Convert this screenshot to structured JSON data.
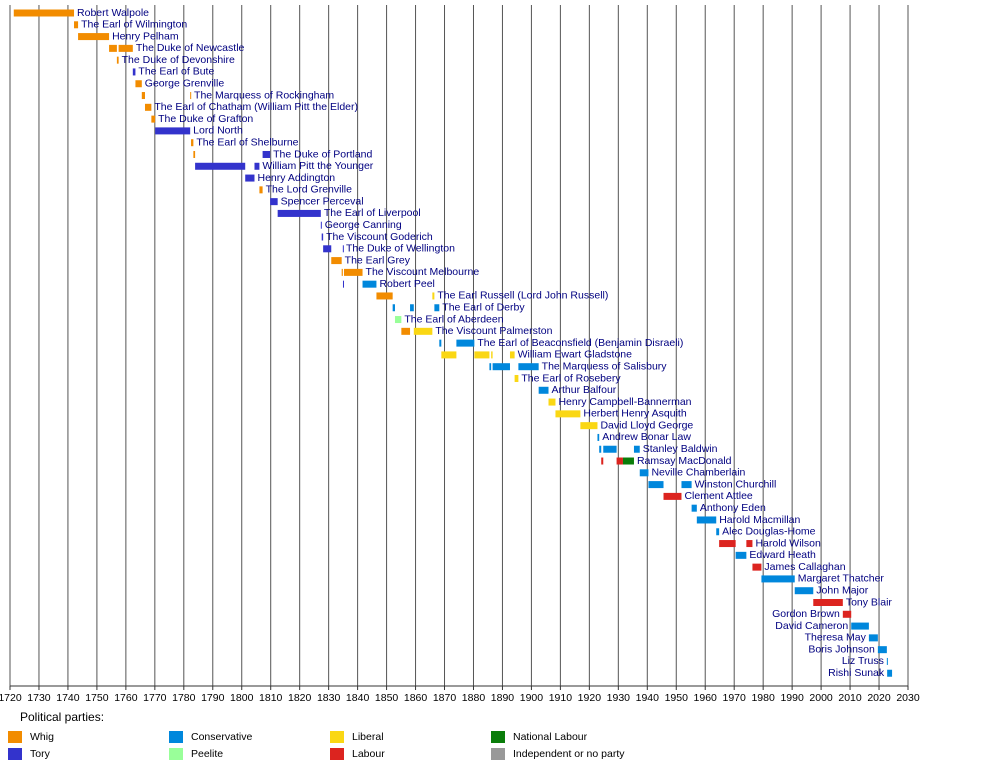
{
  "chart_data": {
    "type": "timeline",
    "xlim": [
      1720,
      2030
    ],
    "xticks": [
      1720,
      1730,
      1740,
      1750,
      1760,
      1770,
      1780,
      1790,
      1800,
      1810,
      1820,
      1830,
      1840,
      1850,
      1860,
      1870,
      1880,
      1890,
      1900,
      1910,
      1920,
      1930,
      1940,
      1950,
      1960,
      1970,
      1980,
      1990,
      2000,
      2010,
      2020,
      2030
    ],
    "grid": true,
    "legend_title": "Political parties:",
    "legend": [
      {
        "name": "Whig",
        "color": "#f28c00"
      },
      {
        "name": "Tory",
        "color": "#3333cc"
      },
      {
        "name": "Conservative",
        "color": "#0087dc"
      },
      {
        "name": "Peelite",
        "color": "#99ff99"
      },
      {
        "name": "Liberal",
        "color": "#fad714"
      },
      {
        "name": "Labour",
        "color": "#dc241f"
      },
      {
        "name": "National Labour",
        "color": "#0a7d0a"
      },
      {
        "name": "Independent or no party",
        "color": "#999999"
      }
    ],
    "rows": [
      {
        "name": "Robert Walpole",
        "terms": [
          {
            "start": 1721.3,
            "end": 1742.1,
            "party": "Whig"
          }
        ]
      },
      {
        "name": "The Earl of Wilmington",
        "terms": [
          {
            "start": 1742.1,
            "end": 1743.5,
            "party": "Whig"
          }
        ]
      },
      {
        "name": "Henry Pelham",
        "terms": [
          {
            "start": 1743.5,
            "end": 1754.2,
            "party": "Whig"
          }
        ]
      },
      {
        "name": "The Duke of Newcastle",
        "terms": [
          {
            "start": 1754.2,
            "end": 1756.9,
            "party": "Whig"
          },
          {
            "start": 1757.5,
            "end": 1762.4,
            "party": "Whig"
          }
        ]
      },
      {
        "name": "The Duke of Devonshire",
        "terms": [
          {
            "start": 1756.9,
            "end": 1757.5,
            "party": "Whig"
          }
        ]
      },
      {
        "name": "The Earl of Bute",
        "terms": [
          {
            "start": 1762.4,
            "end": 1763.3,
            "party": "Tory"
          }
        ]
      },
      {
        "name": "George Grenville",
        "terms": [
          {
            "start": 1763.3,
            "end": 1765.5,
            "party": "Whig"
          }
        ]
      },
      {
        "name": "The Marquess of Rockingham",
        "terms": [
          {
            "start": 1765.5,
            "end": 1766.6,
            "party": "Whig"
          },
          {
            "start": 1782.2,
            "end": 1782.5,
            "party": "Whig"
          }
        ]
      },
      {
        "name": "The Earl of Chatham (William Pitt the Elder)",
        "terms": [
          {
            "start": 1766.6,
            "end": 1768.8,
            "party": "Whig"
          }
        ]
      },
      {
        "name": "The Duke of Grafton",
        "terms": [
          {
            "start": 1768.8,
            "end": 1770.1,
            "party": "Whig"
          }
        ]
      },
      {
        "name": "Lord North",
        "terms": [
          {
            "start": 1770.1,
            "end": 1782.2,
            "party": "Tory"
          }
        ]
      },
      {
        "name": "The Earl of Shelburne",
        "terms": [
          {
            "start": 1782.5,
            "end": 1783.3,
            "party": "Whig"
          }
        ]
      },
      {
        "name": "The Duke of Portland",
        "terms": [
          {
            "start": 1783.3,
            "end": 1783.9,
            "party": "Whig"
          },
          {
            "start": 1807.2,
            "end": 1809.8,
            "party": "Tory"
          }
        ]
      },
      {
        "name": "William Pitt the Younger",
        "terms": [
          {
            "start": 1783.9,
            "end": 1801.2,
            "party": "Tory"
          },
          {
            "start": 1804.4,
            "end": 1806.1,
            "party": "Tory"
          }
        ]
      },
      {
        "name": "Henry Addington",
        "terms": [
          {
            "start": 1801.2,
            "end": 1804.4,
            "party": "Tory"
          }
        ]
      },
      {
        "name": "The Lord Grenville",
        "terms": [
          {
            "start": 1806.1,
            "end": 1807.2,
            "party": "Whig"
          }
        ]
      },
      {
        "name": "Spencer Perceval",
        "terms": [
          {
            "start": 1809.8,
            "end": 1812.4,
            "party": "Tory"
          }
        ]
      },
      {
        "name": "The Earl of Liverpool",
        "terms": [
          {
            "start": 1812.4,
            "end": 1827.3,
            "party": "Tory"
          }
        ]
      },
      {
        "name": "George Canning",
        "terms": [
          {
            "start": 1827.3,
            "end": 1827.6,
            "party": "Tory"
          }
        ]
      },
      {
        "name": "The Viscount Goderich",
        "terms": [
          {
            "start": 1827.6,
            "end": 1828.1,
            "party": "Tory"
          }
        ]
      },
      {
        "name": "The Duke of Wellington",
        "terms": [
          {
            "start": 1828.1,
            "end": 1830.9,
            "party": "Tory"
          },
          {
            "start": 1834.9,
            "end": 1834.95,
            "party": "Tory"
          }
        ]
      },
      {
        "name": "The Earl Grey",
        "terms": [
          {
            "start": 1830.9,
            "end": 1834.5,
            "party": "Whig"
          }
        ]
      },
      {
        "name": "The Viscount Melbourne",
        "terms": [
          {
            "start": 1834.5,
            "end": 1834.9,
            "party": "Whig"
          },
          {
            "start": 1835.3,
            "end": 1841.7,
            "party": "Whig"
          }
        ]
      },
      {
        "name": "Robert Peel",
        "terms": [
          {
            "start": 1834.95,
            "end": 1835.3,
            "party": "Tory"
          },
          {
            "start": 1841.7,
            "end": 1846.5,
            "party": "Conservative"
          }
        ]
      },
      {
        "name": "The Earl Russell (Lord John Russell)",
        "terms": [
          {
            "start": 1846.5,
            "end": 1852.1,
            "party": "Whig"
          },
          {
            "start": 1865.8,
            "end": 1866.5,
            "party": "Liberal"
          }
        ]
      },
      {
        "name": "The Earl of Derby",
        "terms": [
          {
            "start": 1852.1,
            "end": 1852.9,
            "party": "Conservative"
          },
          {
            "start": 1858.1,
            "end": 1859.4,
            "party": "Conservative"
          },
          {
            "start": 1866.5,
            "end": 1868.2,
            "party": "Conservative"
          }
        ]
      },
      {
        "name": "The Earl of Aberdeen",
        "terms": [
          {
            "start": 1852.9,
            "end": 1855.1,
            "party": "Peelite"
          }
        ]
      },
      {
        "name": "The Viscount Palmerston",
        "terms": [
          {
            "start": 1855.1,
            "end": 1858.1,
            "party": "Whig"
          },
          {
            "start": 1859.4,
            "end": 1865.8,
            "party": "Liberal"
          }
        ]
      },
      {
        "name": "The Earl of Beaconsfield (Benjamin Disraeli)",
        "terms": [
          {
            "start": 1868.2,
            "end": 1868.9,
            "party": "Conservative"
          },
          {
            "start": 1874.1,
            "end": 1880.3,
            "party": "Conservative"
          }
        ]
      },
      {
        "name": "William Ewart Gladstone",
        "terms": [
          {
            "start": 1868.9,
            "end": 1874.1,
            "party": "Liberal"
          },
          {
            "start": 1880.3,
            "end": 1885.5,
            "party": "Liberal"
          },
          {
            "start": 1886.1,
            "end": 1886.6,
            "party": "Liberal"
          },
          {
            "start": 1892.6,
            "end": 1894.2,
            "party": "Liberal"
          }
        ]
      },
      {
        "name": "The Marquess of Salisbury",
        "terms": [
          {
            "start": 1885.5,
            "end": 1886.1,
            "party": "Conservative"
          },
          {
            "start": 1886.6,
            "end": 1892.6,
            "party": "Conservative"
          },
          {
            "start": 1895.5,
            "end": 1902.5,
            "party": "Conservative"
          }
        ]
      },
      {
        "name": "The Earl of Rosebery",
        "terms": [
          {
            "start": 1894.2,
            "end": 1895.5,
            "party": "Liberal"
          }
        ]
      },
      {
        "name": "Arthur Balfour",
        "terms": [
          {
            "start": 1902.5,
            "end": 1905.9,
            "party": "Conservative"
          }
        ]
      },
      {
        "name": "Henry Campbell-Bannerman",
        "terms": [
          {
            "start": 1905.9,
            "end": 1908.3,
            "party": "Liberal"
          }
        ]
      },
      {
        "name": "Herbert Henry Asquith",
        "terms": [
          {
            "start": 1908.3,
            "end": 1916.9,
            "party": "Liberal"
          }
        ]
      },
      {
        "name": "David Lloyd George",
        "terms": [
          {
            "start": 1916.9,
            "end": 1922.8,
            "party": "Liberal"
          }
        ]
      },
      {
        "name": "Andrew Bonar Law",
        "terms": [
          {
            "start": 1922.8,
            "end": 1923.4,
            "party": "Conservative"
          }
        ]
      },
      {
        "name": "Stanley Baldwin",
        "terms": [
          {
            "start": 1923.4,
            "end": 1924.1,
            "party": "Conservative"
          },
          {
            "start": 1924.8,
            "end": 1929.4,
            "party": "Conservative"
          },
          {
            "start": 1935.4,
            "end": 1937.4,
            "party": "Conservative"
          }
        ]
      },
      {
        "name": "Ramsay MacDonald",
        "terms": [
          {
            "start": 1924.1,
            "end": 1924.8,
            "party": "Labour"
          },
          {
            "start": 1929.4,
            "end": 1931.6,
            "party": "Labour"
          },
          {
            "start": 1931.6,
            "end": 1935.4,
            "party": "National Labour"
          }
        ]
      },
      {
        "name": "Neville Chamberlain",
        "terms": [
          {
            "start": 1937.4,
            "end": 1940.4,
            "party": "Conservative"
          }
        ]
      },
      {
        "name": "Winston Churchill",
        "terms": [
          {
            "start": 1940.4,
            "end": 1945.6,
            "party": "Conservative"
          },
          {
            "start": 1951.8,
            "end": 1955.3,
            "party": "Conservative"
          }
        ]
      },
      {
        "name": "Clement Attlee",
        "terms": [
          {
            "start": 1945.6,
            "end": 1951.8,
            "party": "Labour"
          }
        ]
      },
      {
        "name": "Anthony Eden",
        "terms": [
          {
            "start": 1955.3,
            "end": 1957.1,
            "party": "Conservative"
          }
        ]
      },
      {
        "name": "Harold Macmillan",
        "terms": [
          {
            "start": 1957.1,
            "end": 1963.8,
            "party": "Conservative"
          }
        ]
      },
      {
        "name": "Alec Douglas-Home",
        "terms": [
          {
            "start": 1963.8,
            "end": 1964.8,
            "party": "Conservative"
          }
        ]
      },
      {
        "name": "Harold Wilson",
        "terms": [
          {
            "start": 1964.8,
            "end": 1970.5,
            "party": "Labour"
          },
          {
            "start": 1974.2,
            "end": 1976.3,
            "party": "Labour"
          }
        ]
      },
      {
        "name": "Edward Heath",
        "terms": [
          {
            "start": 1970.5,
            "end": 1974.2,
            "party": "Conservative"
          }
        ]
      },
      {
        "name": "James Callaghan",
        "terms": [
          {
            "start": 1976.3,
            "end": 1979.4,
            "party": "Labour"
          }
        ]
      },
      {
        "name": "Margaret Thatcher",
        "terms": [
          {
            "start": 1979.4,
            "end": 1990.9,
            "party": "Conservative"
          }
        ]
      },
      {
        "name": "John Major",
        "terms": [
          {
            "start": 1990.9,
            "end": 1997.3,
            "party": "Conservative"
          }
        ]
      },
      {
        "name": "Tony Blair",
        "terms": [
          {
            "start": 1997.3,
            "end": 2007.5,
            "party": "Labour"
          }
        ]
      },
      {
        "name": "Gordon Brown",
        "terms": [
          {
            "start": 2007.5,
            "end": 2010.4,
            "party": "Labour"
          }
        ]
      },
      {
        "name": "David Cameron",
        "terms": [
          {
            "start": 2010.4,
            "end": 2016.5,
            "party": "Conservative"
          }
        ]
      },
      {
        "name": "Theresa May",
        "terms": [
          {
            "start": 2016.5,
            "end": 2019.6,
            "party": "Conservative"
          }
        ]
      },
      {
        "name": "Boris Johnson",
        "terms": [
          {
            "start": 2019.6,
            "end": 2022.7,
            "party": "Conservative"
          }
        ]
      },
      {
        "name": "Liz Truss",
        "terms": [
          {
            "start": 2022.7,
            "end": 2022.8,
            "party": "Conservative"
          }
        ]
      },
      {
        "name": "Rishi Sunak",
        "terms": [
          {
            "start": 2022.8,
            "end": 2024.5,
            "party": "Conservative"
          }
        ]
      }
    ]
  }
}
